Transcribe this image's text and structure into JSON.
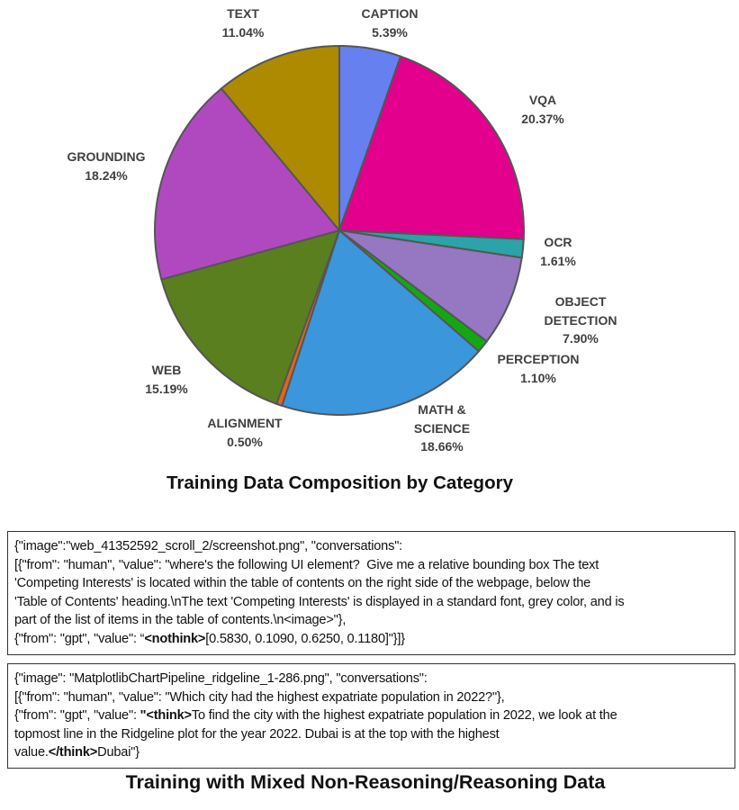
{
  "chart_data": {
    "type": "pie",
    "title": "Training Data Composition by Category",
    "start": "top",
    "direction": "clockwise",
    "slices": [
      {
        "label": [
          "CAPTION"
        ],
        "value": 5.39,
        "text": "5.39%",
        "color": "#6680f0"
      },
      {
        "label": [
          "VQA"
        ],
        "value": 20.37,
        "text": "20.37%",
        "color": "#e2008c"
      },
      {
        "label": [
          "OCR"
        ],
        "value": 1.61,
        "text": "1.61%",
        "color": "#2ba3a8"
      },
      {
        "label": [
          "OBJECT",
          "DETECTION"
        ],
        "value": 7.9,
        "text": "7.90%",
        "color": "#9577c2"
      },
      {
        "label": [
          "PERCEPTION"
        ],
        "value": 1.1,
        "text": "1.10%",
        "color": "#13a813"
      },
      {
        "label": [
          "MATH &",
          "SCIENCE"
        ],
        "value": 18.66,
        "text": "18.66%",
        "color": "#3b96dc"
      },
      {
        "label": [
          "ALIGNMENT"
        ],
        "value": 0.5,
        "text": "0.50%",
        "color": "#e0661c"
      },
      {
        "label": [
          "WEB"
        ],
        "value": 15.19,
        "text": "15.19%",
        "color": "#5a7f1f"
      },
      {
        "label": [
          "GROUNDING"
        ],
        "value": 18.24,
        "text": "18.24%",
        "color": "#b049c0"
      },
      {
        "label": [
          "TEXT"
        ],
        "value": 11.04,
        "text": "11.04%",
        "color": "#ad8a00"
      }
    ]
  },
  "examples": {
    "non_reasoning": {
      "lines": [
        {
          "pre": "{\"image\":\"web_41352592_scroll_2/screenshot.png\", \"conversations\":"
        },
        {
          "pre": "[{\"from\": \"human\", \"value\": \"where's the following UI element?  Give me a relative bounding box The text"
        },
        {
          "pre": "'Competing Interests' is located within the table of contents on the right side of the webpage, below the"
        },
        {
          "pre": "'Table of Contents' heading.\\nThe text 'Competing Interests' is displayed in a standard font, grey color, and is"
        },
        {
          "pre": "part of the list of items in the table of contents.\\n<image>\"},"
        },
        {
          "pre": "{\"from\": \"gpt\", \"value\": “",
          "bold": "<nothink>",
          "post": "[0.5830, 0.1090, 0.6250, 0.1180]\"}]}"
        }
      ]
    },
    "reasoning": {
      "lines": [
        {
          "pre": "{\"image\": \"MatplotlibChartPipeline_ridgeline_1-286.png\", \"conversations\":"
        },
        {
          "pre": "[{\"from\": \"human\", \"value\": \"Which city had the highest expatriate population in 2022?\"},"
        },
        {
          "pre": "{\"from\": \"gpt\", \"value\": ",
          "bold": "\"<think>",
          "post": "To find the city with the highest expatriate population in 2022, we look at the"
        },
        {
          "pre": "topmost line in the Ridgeline plot for the year 2022. Dubai is at the top with the highest"
        },
        {
          "pre": "value.",
          "bold": "</think>",
          "post": "Dubai\"}"
        }
      ]
    },
    "title": "Training with Mixed Non-Reasoning/Reasoning Data"
  }
}
